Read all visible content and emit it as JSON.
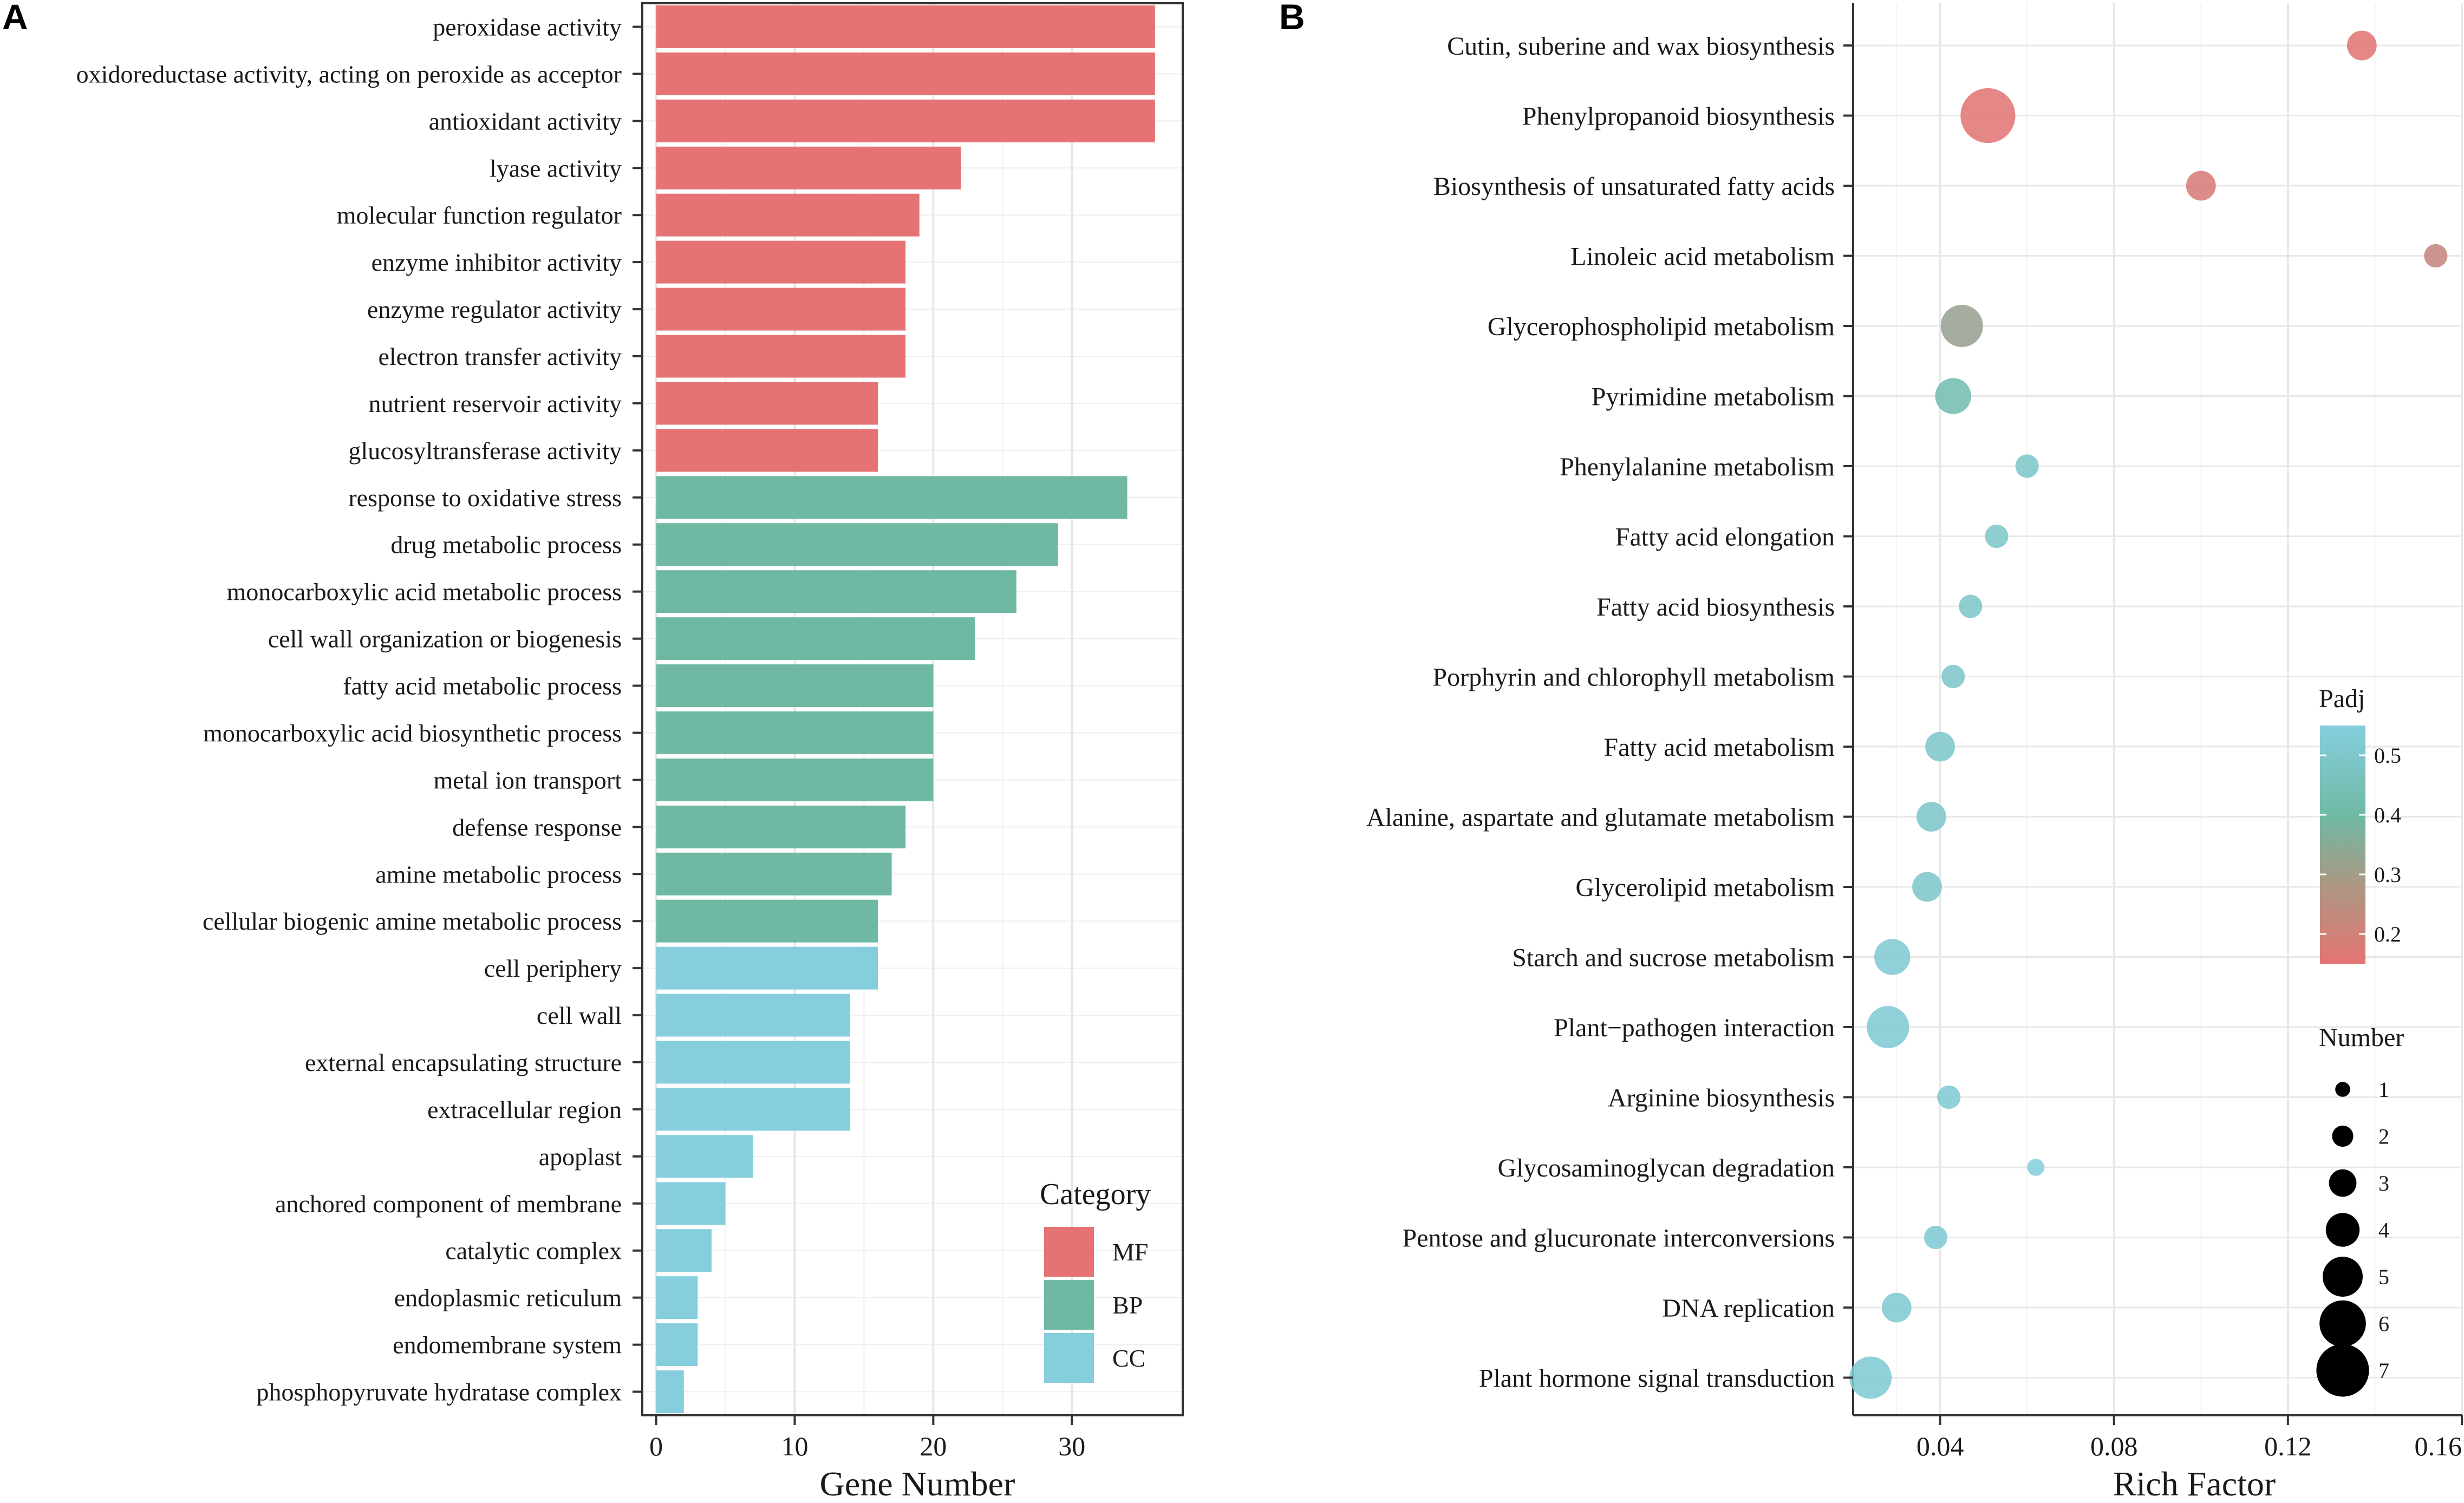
{
  "chart_data": [
    {
      "panel": "A",
      "type": "bar",
      "orientation": "horizontal",
      "xlabel": "Gene Number",
      "ylabel": "",
      "xlim": [
        -1,
        38
      ],
      "xticks": [
        0,
        10,
        20,
        30
      ],
      "grid": true,
      "legend": {
        "title": "Category",
        "placement": "bottom-right-inside",
        "entries": [
          {
            "key": "MF",
            "label": "MF",
            "color": "#e57373"
          },
          {
            "key": "BP",
            "label": "BP",
            "color": "#6fb9a4"
          },
          {
            "key": "CC",
            "label": "CC",
            "color": "#86cede"
          }
        ]
      },
      "categories": [
        "peroxidase activity",
        "oxidoreductase activity, acting on peroxide as acceptor",
        "antioxidant activity",
        "lyase activity",
        "molecular function regulator",
        "enzyme inhibitor activity",
        "enzyme regulator activity",
        "electron transfer activity",
        "nutrient reservoir activity",
        "glucosyltransferase activity",
        "response to oxidative stress",
        "drug metabolic process",
        "monocarboxylic acid metabolic process",
        "cell wall organization or biogenesis",
        "fatty acid metabolic process",
        "monocarboxylic acid biosynthetic process",
        "metal ion transport",
        "defense response",
        "amine metabolic process",
        "cellular biogenic amine metabolic process",
        "cell periphery",
        "cell wall",
        "external encapsulating structure",
        "extracellular region",
        "apoplast",
        "anchored component of membrane",
        "catalytic complex",
        "endoplasmic reticulum",
        "endomembrane system",
        "phosphopyruvate hydratase complex"
      ],
      "values": [
        36,
        36,
        36,
        22,
        19,
        18,
        18,
        18,
        16,
        16,
        34,
        29,
        26,
        23,
        20,
        20,
        20,
        18,
        17,
        16,
        16,
        14,
        14,
        14,
        7,
        5,
        4,
        3,
        3,
        2
      ],
      "category_group": [
        "MF",
        "MF",
        "MF",
        "MF",
        "MF",
        "MF",
        "MF",
        "MF",
        "MF",
        "MF",
        "BP",
        "BP",
        "BP",
        "BP",
        "BP",
        "BP",
        "BP",
        "BP",
        "BP",
        "BP",
        "CC",
        "CC",
        "CC",
        "CC",
        "CC",
        "CC",
        "CC",
        "CC",
        "CC",
        "CC"
      ]
    },
    {
      "panel": "B",
      "type": "scatter",
      "xlabel": "Rich Factor",
      "ylabel": "",
      "xlim": [
        0.02,
        0.16
      ],
      "xticks": [
        0.04,
        0.08,
        0.12,
        0.16
      ],
      "xtick_labels": [
        "0.04",
        "0.08",
        "0.12",
        "0.16"
      ],
      "grid": true,
      "color_legend": {
        "title": "Padj",
        "range": [
          0.15,
          0.55
        ],
        "ticks": [
          0.5,
          0.4,
          0.3,
          0.2
        ],
        "tick_labels": [
          "0.5",
          "0.4",
          "0.3",
          "0.2"
        ],
        "low_color": "#e57373",
        "mid_color": "#6fb9a4",
        "high_color": "#86cede"
      },
      "size_legend": {
        "title": "Number",
        "values": [
          1,
          2,
          3,
          4,
          5,
          6,
          7
        ],
        "labels": [
          "1",
          "2",
          "3",
          "4",
          "5",
          "6",
          "7"
        ]
      },
      "points": [
        {
          "term": "Cutin, suberine and wax biosynthesis",
          "rich_factor": 0.137,
          "number": 3,
          "padj": 0.16
        },
        {
          "term": "Phenylpropanoid biosynthesis",
          "rich_factor": 0.051,
          "number": 7,
          "padj": 0.16
        },
        {
          "term": "Biosynthesis of unsaturated fatty acids",
          "rich_factor": 0.1,
          "number": 3,
          "padj": 0.18
        },
        {
          "term": "Linoleic acid metabolism",
          "rich_factor": 0.154,
          "number": 2,
          "padj": 0.22
        },
        {
          "term": "Glycerophospholipid metabolism",
          "rich_factor": 0.045,
          "number": 5,
          "padj": 0.31
        },
        {
          "term": "Pyrimidine metabolism",
          "rich_factor": 0.043,
          "number": 4,
          "padj": 0.43
        },
        {
          "term": "Phenylalanine metabolism",
          "rich_factor": 0.06,
          "number": 2,
          "padj": 0.5
        },
        {
          "term": "Fatty acid elongation",
          "rich_factor": 0.053,
          "number": 2,
          "padj": 0.5
        },
        {
          "term": "Fatty acid biosynthesis",
          "rich_factor": 0.047,
          "number": 2,
          "padj": 0.5
        },
        {
          "term": "Porphyrin and chlorophyll metabolism",
          "rich_factor": 0.043,
          "number": 2,
          "padj": 0.5
        },
        {
          "term": "Fatty acid metabolism",
          "rich_factor": 0.04,
          "number": 3,
          "padj": 0.5
        },
        {
          "term": "Alanine, aspartate and glutamate metabolism",
          "rich_factor": 0.038,
          "number": 3,
          "padj": 0.5
        },
        {
          "term": "Glycerolipid metabolism",
          "rich_factor": 0.037,
          "number": 3,
          "padj": 0.5
        },
        {
          "term": "Starch and sucrose metabolism",
          "rich_factor": 0.029,
          "number": 4,
          "padj": 0.52
        },
        {
          "term": "Plant−pathogen interaction",
          "rich_factor": 0.028,
          "number": 5,
          "padj": 0.52
        },
        {
          "term": "Arginine biosynthesis",
          "rich_factor": 0.042,
          "number": 2,
          "padj": 0.52
        },
        {
          "term": "Glycosaminoglycan degradation",
          "rich_factor": 0.062,
          "number": 1,
          "padj": 0.55
        },
        {
          "term": "Pentose and glucuronate interconversions",
          "rich_factor": 0.039,
          "number": 2,
          "padj": 0.52
        },
        {
          "term": "DNA replication",
          "rich_factor": 0.03,
          "number": 3,
          "padj": 0.52
        },
        {
          "term": "Plant hormone signal transduction",
          "rich_factor": 0.024,
          "number": 5,
          "padj": 0.52
        }
      ]
    }
  ],
  "panel_labels": {
    "a": "A",
    "b": "B"
  }
}
